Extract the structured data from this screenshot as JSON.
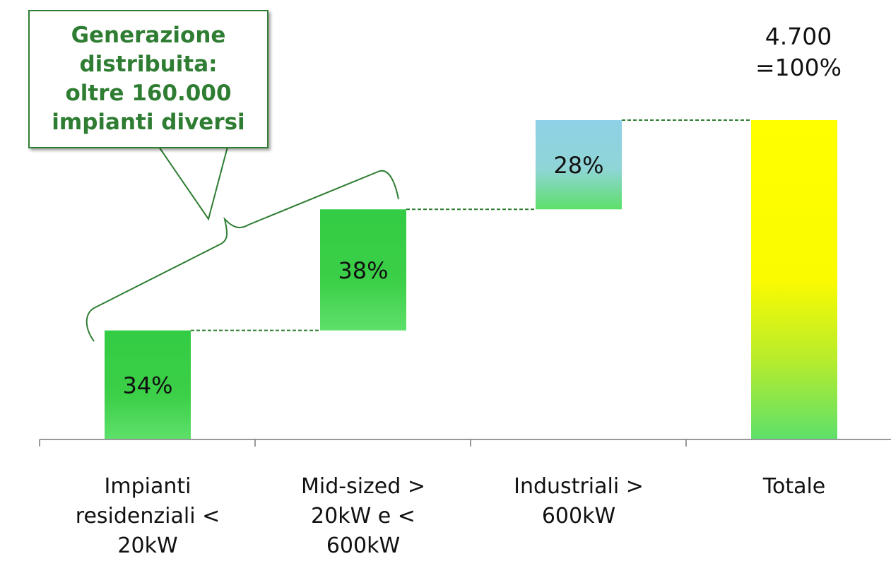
{
  "chart_data": {
    "type": "bar",
    "categories": [
      "Impianti residenziali < 20kW",
      "Mid-sized > 20kW e < 600kW",
      "Industriali > 600kW",
      "Totale"
    ],
    "category_lines": [
      [
        "Impianti",
        "residenziali <",
        "20kW"
      ],
      [
        "Mid-sized >",
        "20kW e <",
        "600kW"
      ],
      [
        "Industriali >",
        "600kW"
      ],
      [
        "Totale"
      ]
    ],
    "values": [
      34,
      38,
      28,
      100
    ],
    "value_labels": [
      "34%",
      "38%",
      "28%",
      ""
    ],
    "ylim": [
      0,
      100
    ],
    "total_label": [
      "4.700",
      "=100%"
    ],
    "colors": {
      "green_top": "#33cc44",
      "green_bottom": "#5ee06a",
      "industrial_top": "#8fd1e6",
      "yellow": "#ffff00",
      "connector": "#2e7d32"
    }
  },
  "callout": {
    "lines": [
      "Generazione",
      "distribuita:",
      "oltre 160.000",
      "impianti diversi"
    ]
  }
}
